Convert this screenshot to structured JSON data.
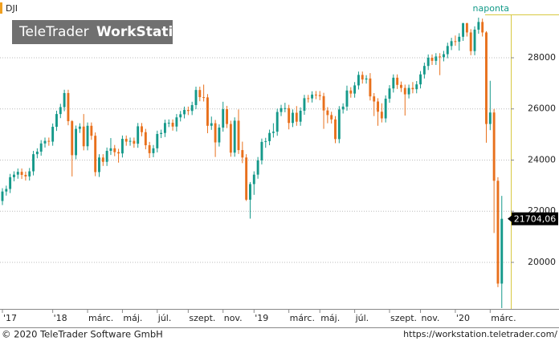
{
  "chart_data": {
    "type": "candlestick",
    "title": "DJI",
    "subtitle": "naponta",
    "watermark_brand": "TeleTrader",
    "watermark_product": "WorkStation",
    "up_color": "#15998a",
    "down_color": "#e8701c",
    "grid": true,
    "open": [
      22400,
      22770,
      22870,
      23330,
      23430,
      23540,
      23420,
      23360,
      23560,
      24230,
      24330,
      24650,
      24750,
      24720,
      25300,
      25800,
      26070,
      26620,
      25520,
      24190,
      25220,
      25310,
      24540,
      25340,
      24950,
      23530,
      24100,
      23930,
      24360,
      24460,
      24310,
      24260,
      24830,
      24720,
      24750,
      24640,
      25320,
      25090,
      24580,
      24270,
      24460,
      25020,
      25060,
      25450,
      25460,
      25310,
      25670,
      25790,
      25960,
      25920,
      26150,
      26740,
      26460,
      26450,
      25340,
      25440,
      24690,
      25270,
      25990,
      25410,
      24290,
      25540,
      24390,
      24100,
      22450,
      23060,
      23430,
      23990,
      24710,
      24740,
      25060,
      25110,
      25880,
      26030,
      26030,
      25450,
      25850,
      25500,
      25930,
      26420,
      26410,
      26560,
      26540,
      26500,
      25940,
      25760,
      25590,
      24820,
      25980,
      26090,
      26720,
      26600,
      26920,
      27330,
      27150,
      27190,
      26490,
      26290,
      25890,
      25630,
      26400,
      26800,
      27220,
      26940,
      26820,
      26570,
      26820,
      26770,
      26960,
      27350,
      27680,
      28000,
      27880,
      28050,
      28020,
      28140,
      28460,
      28650,
      28630,
      28820,
      29350,
      28990,
      28260,
      29100,
      29400,
      28990,
      25410,
      25860,
      23190,
      19170
    ],
    "high": [
      22900,
      23000,
      23460,
      23560,
      23670,
      23670,
      23550,
      23690,
      24360,
      24460,
      24780,
      24880,
      24880,
      25430,
      25930,
      26200,
      26750,
      26750,
      25560,
      25350,
      25440,
      25800,
      25470,
      25470,
      25080,
      24230,
      24230,
      24490,
      24860,
      24590,
      24440,
      24960,
      24960,
      24880,
      24880,
      25450,
      25450,
      25220,
      24710,
      24590,
      25150,
      25190,
      25580,
      25590,
      25590,
      25800,
      25920,
      26090,
      26090,
      26280,
      26870,
      26870,
      26950,
      26580,
      25700,
      25570,
      25400,
      26280,
      26120,
      25540,
      25670,
      25980,
      24720,
      24230,
      23140,
      23560,
      24120,
      24840,
      24870,
      25190,
      25440,
      26010,
      26160,
      26240,
      26160,
      25980,
      26110,
      26060,
      26550,
      26550,
      26690,
      26700,
      26700,
      26630,
      26070,
      25890,
      25720,
      26110,
      26220,
      26910,
      26850,
      27050,
      27460,
      27460,
      27320,
      27400,
      26620,
      26420,
      26220,
      26530,
      26930,
      27350,
      27350,
      27070,
      26950,
      26950,
      27050,
      27090,
      27480,
      27810,
      28130,
      28130,
      28180,
      28180,
      28270,
      28590,
      28780,
      28870,
      28960,
      29370,
      29370,
      29120,
      29230,
      29570,
      29530,
      29040,
      27100,
      26000,
      23330,
      22600
    ],
    "low": [
      22240,
      22610,
      22710,
      23170,
      23270,
      23260,
      23200,
      23200,
      23400,
      24070,
      24170,
      24490,
      24560,
      24560,
      25140,
      25640,
      25910,
      25360,
      23360,
      24030,
      25060,
      24380,
      24380,
      24790,
      23370,
      23340,
      23770,
      23770,
      24200,
      24150,
      23900,
      24100,
      24560,
      24560,
      24480,
      24480,
      24930,
      24420,
      24080,
      24110,
      24300,
      24860,
      24900,
      25290,
      25150,
      25120,
      25510,
      25630,
      25760,
      25760,
      25990,
      26300,
      26290,
      25050,
      25180,
      24120,
      24530,
      25110,
      25250,
      24130,
      24130,
      24240,
      23880,
      22400,
      21710,
      22640,
      23270,
      23830,
      24480,
      24580,
      24880,
      24950,
      25720,
      25870,
      25200,
      25290,
      25340,
      25340,
      25770,
      26250,
      26250,
      26380,
      26340,
      25220,
      25440,
      25430,
      24660,
      24660,
      25820,
      25930,
      26440,
      26440,
      26760,
      26990,
      26990,
      26330,
      25720,
      25340,
      25470,
      25470,
      26240,
      26640,
      26780,
      26660,
      25740,
      26410,
      26610,
      26610,
      26800,
      27190,
      27520,
      27720,
      27720,
      27320,
      27860,
      27980,
      28300,
      28470,
      28280,
      28660,
      28830,
      28100,
      28100,
      28940,
      28830,
      24680,
      25170,
      21150,
      19030,
      18210
    ],
    "close": [
      22770,
      22870,
      23330,
      23430,
      23540,
      23420,
      23360,
      23560,
      24230,
      24330,
      24650,
      24750,
      24720,
      25300,
      25800,
      26070,
      26620,
      25520,
      24190,
      25220,
      25310,
      24540,
      25340,
      24950,
      23530,
      24100,
      23930,
      24360,
      24460,
      24310,
      24260,
      24830,
      24720,
      24750,
      24640,
      25320,
      25090,
      24580,
      24270,
      24460,
      25020,
      25060,
      25450,
      25460,
      25310,
      25670,
      25790,
      25960,
      25920,
      26150,
      26740,
      26460,
      26450,
      25340,
      25440,
      24690,
      25270,
      25990,
      25410,
      24290,
      25540,
      24390,
      24100,
      22450,
      23060,
      23430,
      23990,
      24710,
      24740,
      25060,
      25110,
      25880,
      26030,
      26030,
      25450,
      25850,
      25500,
      25930,
      26420,
      26410,
      26560,
      26540,
      26500,
      25940,
      25760,
      25590,
      24820,
      25980,
      26090,
      26720,
      26600,
      26920,
      27330,
      27150,
      27190,
      26490,
      26290,
      25890,
      25630,
      26400,
      26800,
      27220,
      26940,
      26820,
      26570,
      26820,
      26770,
      26960,
      27350,
      27680,
      28000,
      27880,
      28050,
      28020,
      28140,
      28460,
      28650,
      28630,
      28820,
      29350,
      28990,
      28260,
      29100,
      29400,
      28990,
      25410,
      25860,
      23190,
      19170,
      21704.06
    ],
    "last_price": {
      "value": 21704.06,
      "label": "21704,06"
    },
    "ylim": [
      18180,
      29694
    ],
    "yticks": [
      20000,
      22000,
      24000,
      26000,
      28000
    ],
    "xlim": [
      -0.62,
      131.33
    ],
    "xticks": [
      {
        "value": 0,
        "label": "'17"
      },
      {
        "value": 13,
        "label": "'18"
      },
      {
        "value": 22,
        "label": "márc."
      },
      {
        "value": 31,
        "label": "máj."
      },
      {
        "value": 40,
        "label": "júl."
      },
      {
        "value": 48,
        "label": "szept."
      },
      {
        "value": 57,
        "label": "nov."
      },
      {
        "value": 65,
        "label": "'19"
      },
      {
        "value": 74,
        "label": "márc."
      },
      {
        "value": 82,
        "label": "máj."
      },
      {
        "value": 91,
        "label": "júl."
      },
      {
        "value": 100,
        "label": "szept."
      },
      {
        "value": 108,
        "label": "nov."
      },
      {
        "value": 117,
        "label": "'20"
      },
      {
        "value": 126,
        "label": "márc."
      }
    ]
  },
  "footer": {
    "copyright": "© 2020 TeleTrader Software GmbH",
    "url": "https://workstation.teletrader.com/"
  }
}
